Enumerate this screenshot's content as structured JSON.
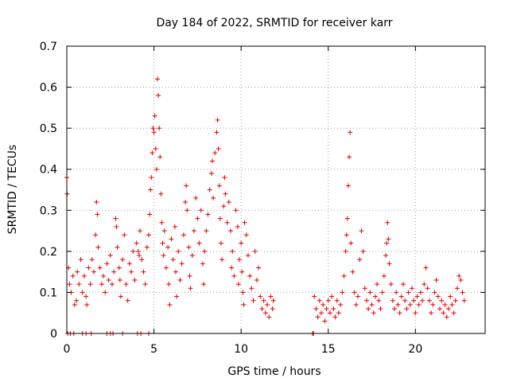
{
  "chart_data": {
    "type": "scatter",
    "title": "Day 184 of 2022, SRMTID for receiver karr",
    "xlabel": "GPS time / hours",
    "ylabel": "SRMTID / TECUs",
    "xlim": [
      0,
      24
    ],
    "ylim": [
      0,
      0.7
    ],
    "xticks": [
      0,
      5,
      10,
      15,
      20
    ],
    "xtick_labels": [
      "0",
      "5",
      "10",
      "15",
      "20"
    ],
    "yticks": [
      0,
      0.1,
      0.2,
      0.3,
      0.4,
      0.5,
      0.6,
      0.7
    ],
    "ytick_labels": [
      "0",
      "0.1",
      "0.2",
      "0.3",
      "0.4",
      "0.5",
      "0.6",
      "0.7"
    ],
    "grid": true,
    "marker": "+",
    "marker_color": "#e00000",
    "series": [
      {
        "name": "SRMTID",
        "points": [
          [
            0.0,
            0.38
          ],
          [
            0.02,
            0.34
          ],
          [
            0.1,
            0.16
          ],
          [
            0.15,
            0.12
          ],
          [
            0.25,
            0.1
          ],
          [
            0.35,
            0.14
          ],
          [
            0.45,
            0.07
          ],
          [
            0.55,
            0.08
          ],
          [
            0.6,
            0.15
          ],
          [
            0.7,
            0.12
          ],
          [
            0.8,
            0.18
          ],
          [
            0.9,
            0.1
          ],
          [
            1.0,
            0.14
          ],
          [
            1.1,
            0.09
          ],
          [
            1.15,
            0.07
          ],
          [
            1.25,
            0.16
          ],
          [
            1.35,
            0.12
          ],
          [
            1.45,
            0.18
          ],
          [
            1.55,
            0.15
          ],
          [
            1.65,
            0.24
          ],
          [
            1.7,
            0.32
          ],
          [
            1.75,
            0.29
          ],
          [
            1.8,
            0.21
          ],
          [
            1.9,
            0.16
          ],
          [
            2.0,
            0.12
          ],
          [
            2.1,
            0.14
          ],
          [
            2.2,
            0.1
          ],
          [
            2.3,
            0.17
          ],
          [
            2.4,
            0.13
          ],
          [
            2.5,
            0.19
          ],
          [
            2.6,
            0.12
          ],
          [
            2.7,
            0.15
          ],
          [
            2.8,
            0.28
          ],
          [
            2.85,
            0.26
          ],
          [
            2.9,
            0.21
          ],
          [
            3.0,
            0.16
          ],
          [
            3.05,
            0.13
          ],
          [
            3.1,
            0.09
          ],
          [
            3.2,
            0.18
          ],
          [
            3.3,
            0.24
          ],
          [
            3.4,
            0.12
          ],
          [
            3.5,
            0.08
          ],
          [
            3.6,
            0.17
          ],
          [
            3.7,
            0.15
          ],
          [
            3.8,
            0.2
          ],
          [
            3.9,
            0.13
          ],
          [
            4.0,
            0.22
          ],
          [
            4.1,
            0.2
          ],
          [
            4.15,
            0.19
          ],
          [
            4.2,
            0.25
          ],
          [
            4.3,
            0.18
          ],
          [
            4.4,
            0.15
          ],
          [
            4.5,
            0.12
          ],
          [
            4.6,
            0.21
          ],
          [
            4.7,
            0.24
          ],
          [
            4.75,
            0.29
          ],
          [
            4.8,
            0.35
          ],
          [
            4.85,
            0.38
          ],
          [
            4.9,
            0.44
          ],
          [
            4.95,
            0.5
          ],
          [
            5.0,
            0.49
          ],
          [
            5.05,
            0.53
          ],
          [
            5.1,
            0.45
          ],
          [
            5.15,
            0.4
          ],
          [
            5.2,
            0.62
          ],
          [
            5.25,
            0.58
          ],
          [
            5.3,
            0.5
          ],
          [
            5.35,
            0.43
          ],
          [
            5.4,
            0.34
          ],
          [
            5.45,
            0.27
          ],
          [
            5.5,
            0.22
          ],
          [
            5.55,
            0.19
          ],
          [
            5.6,
            0.25
          ],
          [
            5.7,
            0.16
          ],
          [
            5.8,
            0.21
          ],
          [
            5.85,
            0.12
          ],
          [
            5.9,
            0.07
          ],
          [
            6.0,
            0.23
          ],
          [
            6.1,
            0.18
          ],
          [
            6.2,
            0.26
          ],
          [
            6.25,
            0.15
          ],
          [
            6.3,
            0.09
          ],
          [
            6.4,
            0.2
          ],
          [
            6.5,
            0.13
          ],
          [
            6.6,
            0.17
          ],
          [
            6.7,
            0.24
          ],
          [
            6.8,
            0.32
          ],
          [
            6.85,
            0.36
          ],
          [
            6.9,
            0.3
          ],
          [
            7.0,
            0.21
          ],
          [
            7.05,
            0.14
          ],
          [
            7.1,
            0.11
          ],
          [
            7.2,
            0.19
          ],
          [
            7.3,
            0.25
          ],
          [
            7.4,
            0.33
          ],
          [
            7.5,
            0.28
          ],
          [
            7.6,
            0.22
          ],
          [
            7.7,
            0.3
          ],
          [
            7.8,
            0.17
          ],
          [
            7.85,
            0.12
          ],
          [
            7.9,
            0.2
          ],
          [
            8.0,
            0.25
          ],
          [
            8.1,
            0.29
          ],
          [
            8.2,
            0.35
          ],
          [
            8.3,
            0.39
          ],
          [
            8.35,
            0.42
          ],
          [
            8.4,
            0.33
          ],
          [
            8.5,
            0.44
          ],
          [
            8.6,
            0.49
          ],
          [
            8.65,
            0.52
          ],
          [
            8.7,
            0.45
          ],
          [
            8.75,
            0.36
          ],
          [
            8.8,
            0.28
          ],
          [
            8.85,
            0.22
          ],
          [
            8.9,
            0.18
          ],
          [
            9.0,
            0.31
          ],
          [
            9.05,
            0.38
          ],
          [
            9.1,
            0.34
          ],
          [
            9.2,
            0.27
          ],
          [
            9.3,
            0.32
          ],
          [
            9.4,
            0.25
          ],
          [
            9.45,
            0.16
          ],
          [
            9.5,
            0.2
          ],
          [
            9.6,
            0.14
          ],
          [
            9.7,
            0.3
          ],
          [
            9.8,
            0.26
          ],
          [
            9.85,
            0.12
          ],
          [
            9.9,
            0.18
          ],
          [
            10.0,
            0.22
          ],
          [
            10.05,
            0.15
          ],
          [
            10.1,
            0.1
          ],
          [
            10.15,
            0.07
          ],
          [
            10.2,
            0.27
          ],
          [
            10.3,
            0.24
          ],
          [
            10.4,
            0.19
          ],
          [
            10.5,
            0.14
          ],
          [
            10.6,
            0.11
          ],
          [
            10.7,
            0.08
          ],
          [
            10.8,
            0.2
          ],
          [
            10.9,
            0.13
          ],
          [
            11.0,
            0.16
          ],
          [
            11.1,
            0.09
          ],
          [
            11.2,
            0.06
          ],
          [
            11.3,
            0.08
          ],
          [
            11.4,
            0.05
          ],
          [
            11.5,
            0.07
          ],
          [
            11.6,
            0.04
          ],
          [
            11.7,
            0.09
          ],
          [
            11.8,
            0.06
          ],
          [
            11.85,
            0.08
          ],
          [
            14.2,
            0.09
          ],
          [
            14.3,
            0.06
          ],
          [
            14.4,
            0.04
          ],
          [
            14.5,
            0.08
          ],
          [
            14.6,
            0.05
          ],
          [
            14.7,
            0.07
          ],
          [
            14.8,
            0.03
          ],
          [
            14.9,
            0.06
          ],
          [
            15.0,
            0.08
          ],
          [
            15.1,
            0.05
          ],
          [
            15.2,
            0.09
          ],
          [
            15.3,
            0.06
          ],
          [
            15.4,
            0.04
          ],
          [
            15.5,
            0.08
          ],
          [
            15.6,
            0.05
          ],
          [
            15.7,
            0.07
          ],
          [
            15.8,
            0.1
          ],
          [
            15.9,
            0.14
          ],
          [
            16.0,
            0.2
          ],
          [
            16.05,
            0.24
          ],
          [
            16.1,
            0.28
          ],
          [
            16.15,
            0.36
          ],
          [
            16.2,
            0.43
          ],
          [
            16.25,
            0.49
          ],
          [
            16.3,
            0.22
          ],
          [
            16.4,
            0.15
          ],
          [
            16.5,
            0.1
          ],
          [
            16.6,
            0.07
          ],
          [
            16.7,
            0.09
          ],
          [
            16.8,
            0.18
          ],
          [
            16.9,
            0.25
          ],
          [
            17.0,
            0.2
          ],
          [
            17.1,
            0.11
          ],
          [
            17.2,
            0.08
          ],
          [
            17.3,
            0.06
          ],
          [
            17.4,
            0.1
          ],
          [
            17.5,
            0.07
          ],
          [
            17.6,
            0.05
          ],
          [
            17.7,
            0.09
          ],
          [
            17.8,
            0.12
          ],
          [
            17.9,
            0.08
          ],
          [
            18.0,
            0.06
          ],
          [
            18.1,
            0.1
          ],
          [
            18.2,
            0.14
          ],
          [
            18.3,
            0.19
          ],
          [
            18.35,
            0.22
          ],
          [
            18.4,
            0.27
          ],
          [
            18.45,
            0.23
          ],
          [
            18.5,
            0.17
          ],
          [
            18.6,
            0.12
          ],
          [
            18.7,
            0.08
          ],
          [
            18.8,
            0.06
          ],
          [
            18.9,
            0.1
          ],
          [
            19.0,
            0.07
          ],
          [
            19.1,
            0.05
          ],
          [
            19.2,
            0.09
          ],
          [
            19.3,
            0.12
          ],
          [
            19.4,
            0.08
          ],
          [
            19.5,
            0.06
          ],
          [
            19.6,
            0.1
          ],
          [
            19.7,
            0.07
          ],
          [
            19.8,
            0.11
          ],
          [
            19.9,
            0.08
          ],
          [
            20.0,
            0.05
          ],
          [
            20.1,
            0.09
          ],
          [
            20.2,
            0.07
          ],
          [
            20.3,
            0.1
          ],
          [
            20.4,
            0.08
          ],
          [
            20.5,
            0.12
          ],
          [
            20.6,
            0.16
          ],
          [
            20.7,
            0.11
          ],
          [
            20.8,
            0.08
          ],
          [
            20.9,
            0.05
          ],
          [
            21.0,
            0.07
          ],
          [
            21.1,
            0.1
          ],
          [
            21.2,
            0.13
          ],
          [
            21.3,
            0.09
          ],
          [
            21.4,
            0.06
          ],
          [
            21.5,
            0.08
          ],
          [
            21.6,
            0.05
          ],
          [
            21.7,
            0.07
          ],
          [
            21.8,
            0.04
          ],
          [
            21.9,
            0.06
          ],
          [
            22.0,
            0.09
          ],
          [
            22.1,
            0.07
          ],
          [
            22.2,
            0.05
          ],
          [
            22.3,
            0.08
          ],
          [
            22.4,
            0.11
          ],
          [
            22.5,
            0.14
          ],
          [
            22.6,
            0.13
          ],
          [
            22.7,
            0.1
          ],
          [
            22.8,
            0.08
          ],
          [
            0.05,
            0.0
          ],
          [
            0.2,
            0.0
          ],
          [
            0.4,
            0.0
          ],
          [
            0.9,
            0.0
          ],
          [
            1.1,
            0.0
          ],
          [
            1.4,
            0.0
          ],
          [
            2.3,
            0.0
          ],
          [
            2.5,
            0.0
          ],
          [
            2.65,
            0.0
          ],
          [
            3.2,
            0.0
          ],
          [
            4.05,
            0.0
          ],
          [
            4.25,
            0.0
          ],
          [
            4.7,
            0.0
          ],
          [
            14.1,
            0.0
          ],
          [
            14.15,
            0.0
          ]
        ]
      }
    ]
  }
}
